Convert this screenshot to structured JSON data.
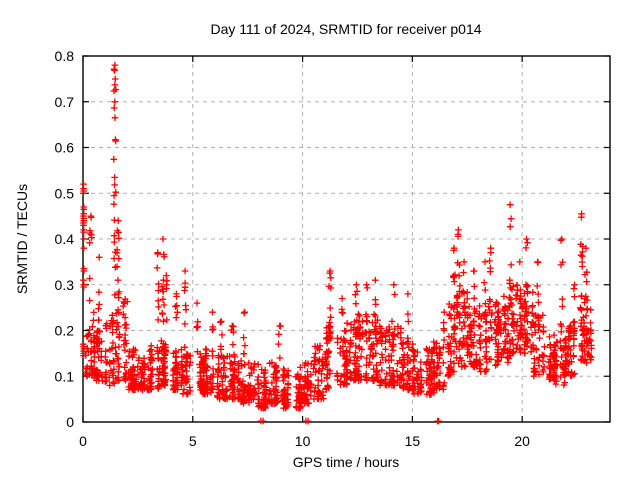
{
  "chart_data": {
    "type": "scatter",
    "title": "Day 111 of 2024, SRMTID for receiver p014",
    "xlabel": "GPS time / hours",
    "ylabel": "SRMTID / TECUs",
    "xlim": [
      0,
      24
    ],
    "ylim": [
      0,
      0.8
    ],
    "xticks": [
      0,
      5,
      10,
      15,
      20
    ],
    "xtick_labels": [
      "0",
      "5",
      "10",
      "15",
      "20"
    ],
    "yticks": [
      0,
      0.1,
      0.2,
      0.3,
      0.4,
      0.5,
      0.6,
      0.7,
      0.8
    ],
    "ytick_labels": [
      "0",
      "0.1",
      "0.2",
      "0.3",
      "0.4",
      "0.5",
      "0.6",
      "0.7",
      "0.8"
    ],
    "grid": true,
    "grid_style": "dashed",
    "grid_color": "#b0b0b0",
    "border_color": "#000000",
    "marker": "plus",
    "marker_color": "#ff0000",
    "legend": "none",
    "x_data_range": [
      0,
      23.1
    ],
    "seed": 111,
    "band_profile": {
      "bin_hours": 0.5,
      "comment": "dense noise band per 0.5h bin: [x_start, y_low, y_high, n_points, optional_width]",
      "bins": [
        [
          0.0,
          0.1,
          0.24,
          40
        ],
        [
          0.5,
          0.09,
          0.2,
          40
        ],
        [
          1.0,
          0.08,
          0.24,
          40
        ],
        [
          1.5,
          0.09,
          0.28,
          40
        ],
        [
          2.0,
          0.07,
          0.16,
          40
        ],
        [
          2.5,
          0.07,
          0.14,
          40
        ],
        [
          3.0,
          0.07,
          0.17,
          40
        ],
        [
          3.5,
          0.08,
          0.18,
          40
        ],
        [
          4.0,
          0.07,
          0.16,
          40
        ],
        [
          4.5,
          0.06,
          0.15,
          40
        ],
        [
          5.0,
          0.06,
          0.15,
          40
        ],
        [
          5.5,
          0.06,
          0.16,
          40
        ],
        [
          6.0,
          0.05,
          0.15,
          40
        ],
        [
          6.5,
          0.05,
          0.15,
          40
        ],
        [
          7.0,
          0.04,
          0.14,
          40
        ],
        [
          7.5,
          0.04,
          0.13,
          40
        ],
        [
          8.0,
          0.03,
          0.12,
          40
        ],
        [
          8.5,
          0.04,
          0.13,
          40
        ],
        [
          9.0,
          0.03,
          0.12,
          40
        ],
        [
          9.5,
          0.03,
          0.12,
          40
        ],
        [
          10.0,
          0.04,
          0.13,
          40
        ],
        [
          10.5,
          0.05,
          0.17,
          40
        ],
        [
          11.0,
          0.07,
          0.22,
          40
        ],
        [
          11.5,
          0.08,
          0.2,
          40
        ],
        [
          12.0,
          0.09,
          0.22,
          40
        ],
        [
          12.5,
          0.09,
          0.24,
          40
        ],
        [
          13.0,
          0.09,
          0.24,
          40
        ],
        [
          13.5,
          0.08,
          0.21,
          40
        ],
        [
          14.0,
          0.08,
          0.22,
          40
        ],
        [
          14.5,
          0.07,
          0.18,
          40
        ],
        [
          15.0,
          0.06,
          0.16,
          40
        ],
        [
          15.5,
          0.06,
          0.16,
          40
        ],
        [
          16.0,
          0.07,
          0.18,
          40
        ],
        [
          16.5,
          0.1,
          0.26,
          40
        ],
        [
          17.0,
          0.12,
          0.3,
          40
        ],
        [
          17.5,
          0.12,
          0.28,
          40
        ],
        [
          18.0,
          0.11,
          0.26,
          40
        ],
        [
          18.5,
          0.12,
          0.27,
          40
        ],
        [
          19.0,
          0.13,
          0.28,
          40
        ],
        [
          19.5,
          0.15,
          0.3,
          40
        ],
        [
          20.0,
          0.15,
          0.3,
          40
        ],
        [
          20.5,
          0.1,
          0.24,
          40
        ],
        [
          21.0,
          0.09,
          0.2,
          40
        ],
        [
          21.5,
          0.08,
          0.18,
          40
        ],
        [
          22.0,
          0.1,
          0.22,
          40
        ],
        [
          22.5,
          0.12,
          0.28,
          40
        ],
        [
          23.0,
          0.13,
          0.25,
          16,
          0.2
        ]
      ]
    },
    "spikes": {
      "comment": "vertical streak features: [x_hours, y_min, y_max, n_points]",
      "list": [
        [
          0.35,
          0.2,
          0.45,
          10
        ],
        [
          0.75,
          0.18,
          0.36,
          7
        ],
        [
          1.45,
          0.72,
          0.78,
          7
        ],
        [
          1.45,
          0.25,
          0.7,
          18
        ],
        [
          1.6,
          0.2,
          0.44,
          10
        ],
        [
          3.4,
          0.15,
          0.37,
          9
        ],
        [
          3.65,
          0.18,
          0.4,
          12
        ],
        [
          3.8,
          0.15,
          0.32,
          7
        ],
        [
          4.25,
          0.14,
          0.28,
          6
        ],
        [
          4.65,
          0.15,
          0.33,
          8
        ],
        [
          5.2,
          0.14,
          0.26,
          6
        ],
        [
          5.9,
          0.14,
          0.24,
          5
        ],
        [
          6.3,
          0.13,
          0.22,
          5
        ],
        [
          6.8,
          0.13,
          0.21,
          5
        ],
        [
          7.35,
          0.13,
          0.24,
          6
        ],
        [
          8.95,
          0.12,
          0.21,
          5
        ],
        [
          11.25,
          0.18,
          0.33,
          10
        ],
        [
          11.8,
          0.15,
          0.27,
          6
        ],
        [
          12.45,
          0.18,
          0.3,
          6
        ],
        [
          12.9,
          0.18,
          0.3,
          6
        ],
        [
          13.3,
          0.18,
          0.31,
          6
        ],
        [
          14.15,
          0.17,
          0.3,
          7
        ],
        [
          14.8,
          0.15,
          0.28,
          5
        ],
        [
          16.45,
          0.14,
          0.24,
          5
        ],
        [
          16.9,
          0.18,
          0.38,
          10
        ],
        [
          17.1,
          0.22,
          0.42,
          12
        ],
        [
          17.35,
          0.18,
          0.35,
          6
        ],
        [
          17.8,
          0.18,
          0.33,
          5
        ],
        [
          18.3,
          0.18,
          0.35,
          7
        ],
        [
          18.55,
          0.2,
          0.38,
          8
        ],
        [
          19.45,
          0.22,
          0.475,
          12
        ],
        [
          19.9,
          0.18,
          0.35,
          6
        ],
        [
          20.2,
          0.22,
          0.4,
          8
        ],
        [
          20.7,
          0.18,
          0.35,
          6
        ],
        [
          21.8,
          0.16,
          0.4,
          9
        ],
        [
          22.4,
          0.16,
          0.3,
          6
        ],
        [
          22.7,
          0.22,
          0.455,
          10
        ],
        [
          22.9,
          0.18,
          0.38,
          6
        ]
      ]
    },
    "edge_column": {
      "comment": "points on the y-axis at hour 0",
      "x": 0.02,
      "y": [
        0.52,
        0.51,
        0.505,
        0.5,
        0.47,
        0.465,
        0.455,
        0.45,
        0.445,
        0.44,
        0.435,
        0.43,
        0.42,
        0.415,
        0.4,
        0.38,
        0.335,
        0.33,
        0.31,
        0.3,
        0.295,
        0.17,
        0.165,
        0.16,
        0.155,
        0.15,
        0.145
      ]
    },
    "zero_points": {
      "comment": "samples at SRMTID = 0 sitting on the x-axis",
      "x": [
        8.1,
        8.2,
        10.15,
        10.25,
        16.15,
        16.2
      ]
    }
  }
}
